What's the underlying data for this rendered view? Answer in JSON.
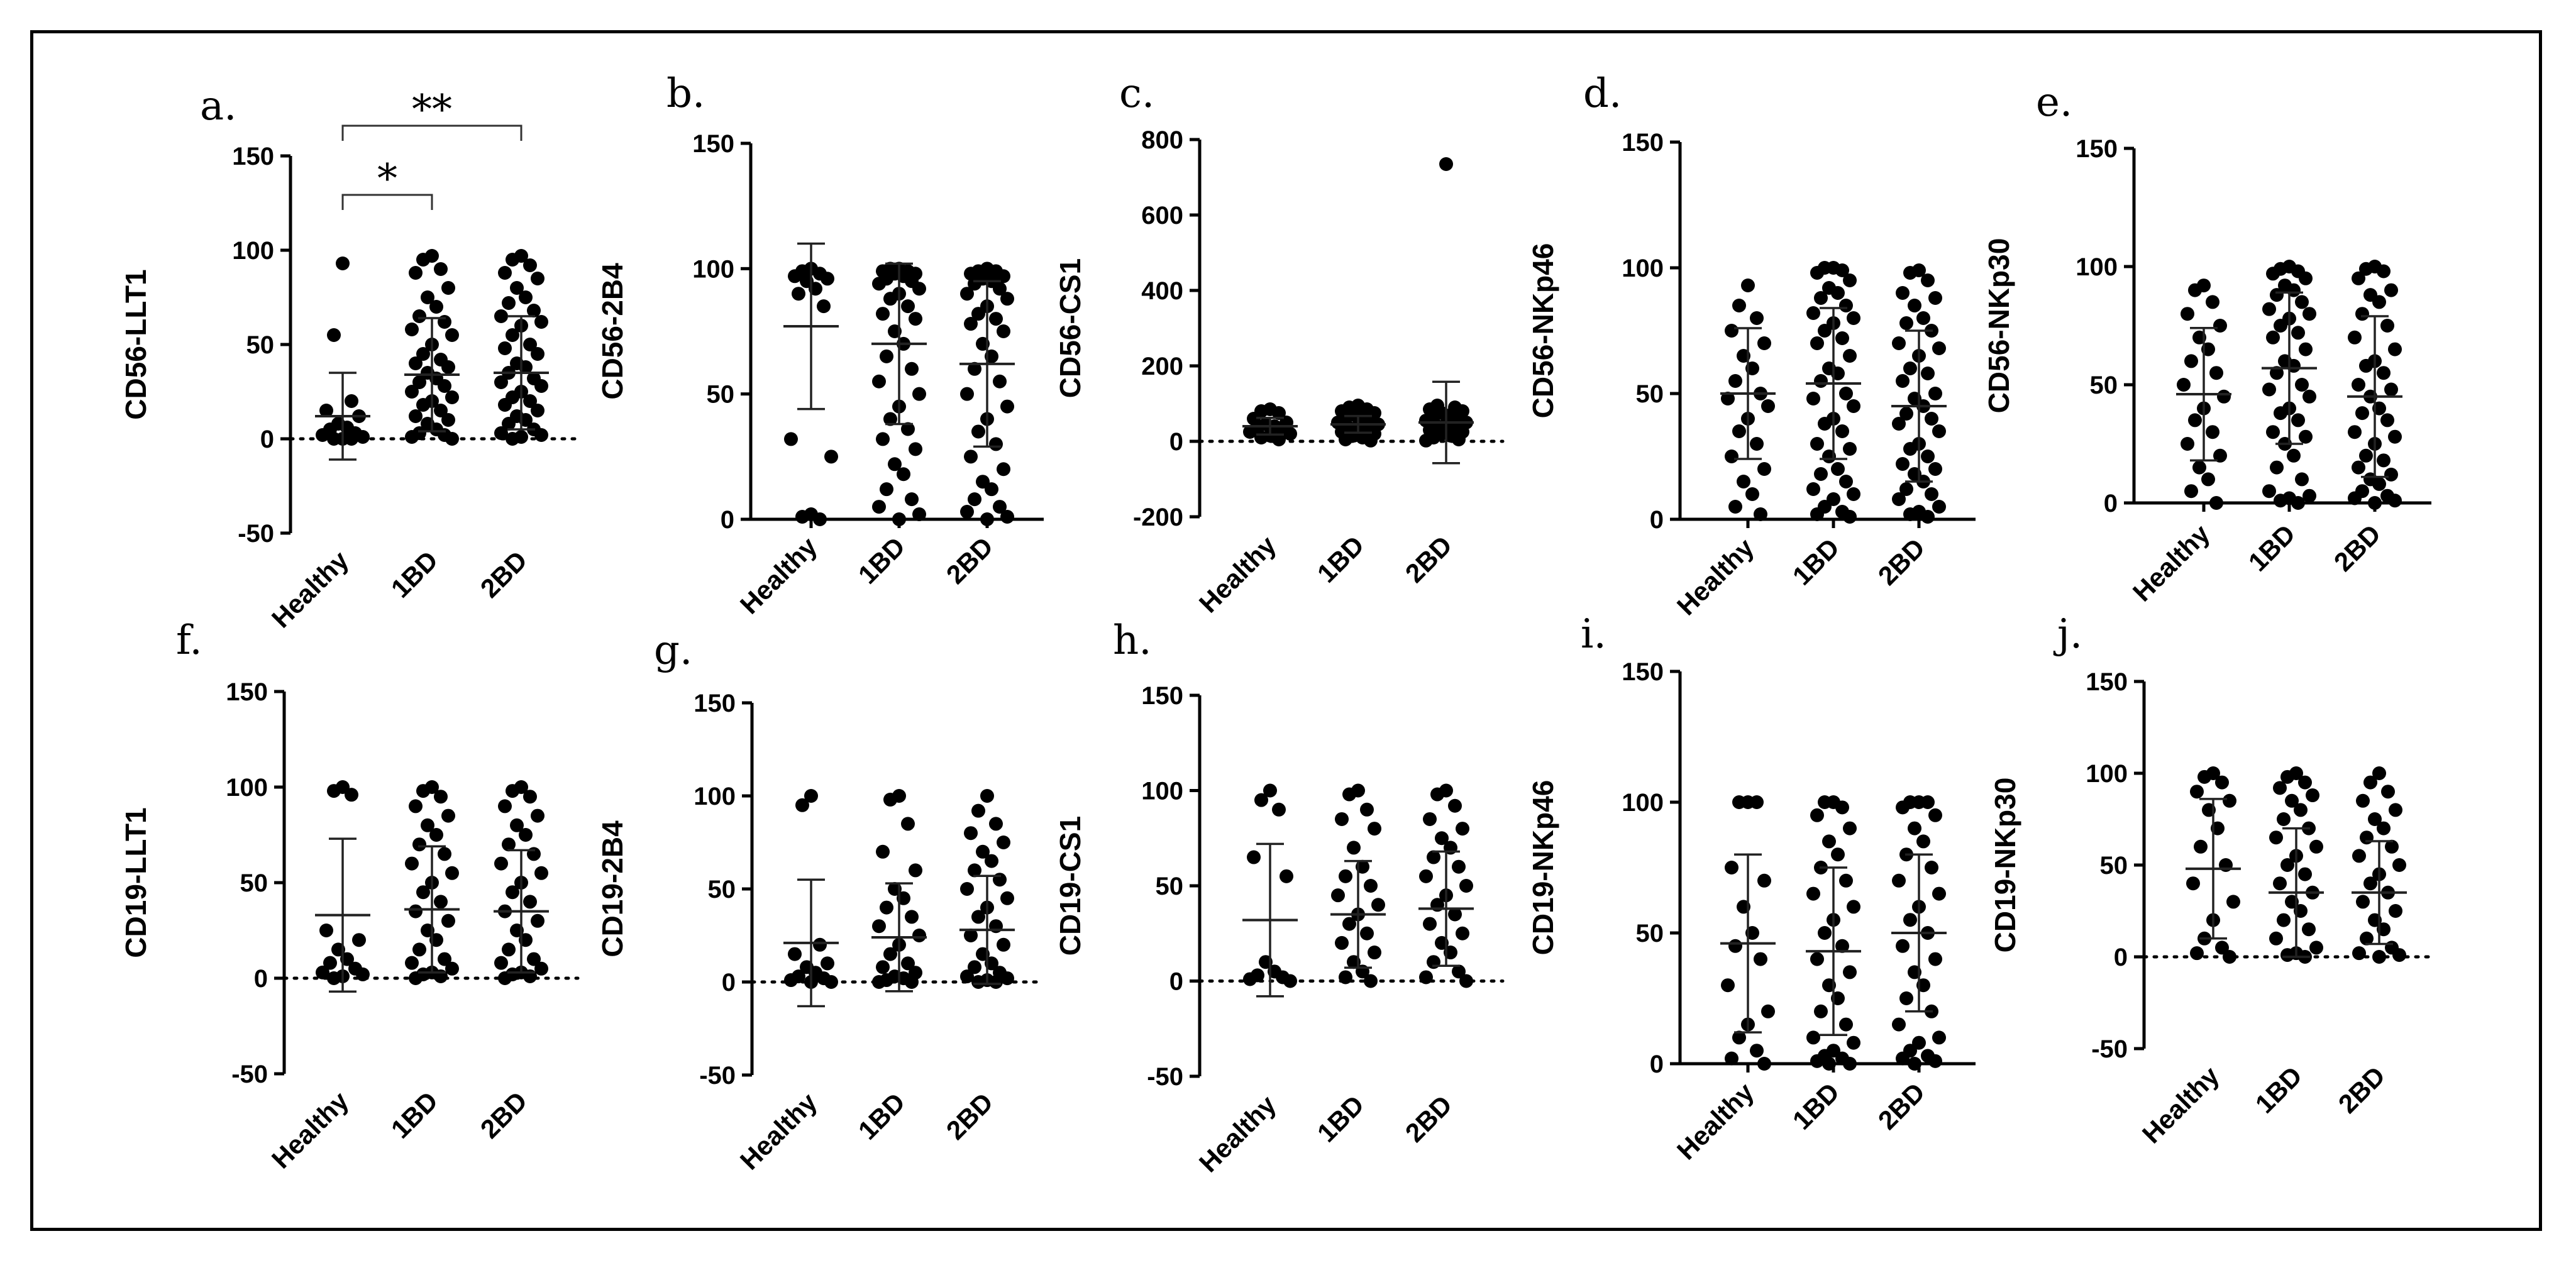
{
  "figure": {
    "colors": {
      "points": "#000000",
      "axes": "#000000",
      "error_bars": "#222222",
      "frame": "#000000"
    }
  },
  "chart_data": [
    {
      "panel": "a.",
      "type": "scatter",
      "ylabel": "CD56-LLT1",
      "categories": [
        "Healthy",
        "1BD",
        "2BD"
      ],
      "ylim": [
        -50,
        150
      ],
      "yticks": [
        "-50",
        "0",
        "50",
        "100",
        "150"
      ],
      "zero_line": true,
      "means": [
        12,
        34,
        35
      ],
      "sd": [
        23,
        30,
        30
      ],
      "series": [
        {
          "name": "Healthy",
          "values": [
            93,
            55,
            20,
            15,
            12,
            8,
            6,
            5,
            3,
            2,
            1,
            0,
            0,
            0
          ]
        },
        {
          "name": "1BD",
          "values": [
            97,
            95,
            90,
            88,
            80,
            75,
            70,
            65,
            62,
            58,
            55,
            50,
            45,
            42,
            40,
            38,
            35,
            32,
            30,
            28,
            25,
            22,
            20,
            18,
            15,
            12,
            10,
            8,
            5,
            3,
            2,
            1,
            0
          ]
        },
        {
          "name": "2BD",
          "values": [
            97,
            95,
            92,
            88,
            85,
            80,
            75,
            72,
            68,
            65,
            62,
            60,
            55,
            50,
            48,
            45,
            40,
            38,
            35,
            32,
            30,
            28,
            25,
            22,
            20,
            18,
            15,
            12,
            10,
            8,
            5,
            3,
            2,
            1,
            0
          ]
        }
      ],
      "significance": [
        {
          "from": "Healthy",
          "to": "1BD",
          "label": "*"
        },
        {
          "from": "Healthy",
          "to": "2BD",
          "label": "**"
        }
      ]
    },
    {
      "panel": "b.",
      "type": "scatter",
      "ylabel": "CD56-2B4",
      "categories": [
        "Healthy",
        "1BD",
        "2BD"
      ],
      "ylim": [
        0,
        150
      ],
      "yticks": [
        "0",
        "50",
        "100",
        "150"
      ],
      "zero_line": false,
      "means": [
        77,
        70,
        62
      ],
      "sd": [
        33,
        32,
        33
      ],
      "series": [
        {
          "name": "Healthy",
          "values": [
            100,
            99,
            98,
            97,
            96,
            95,
            92,
            90,
            85,
            32,
            25,
            2,
            1,
            0
          ]
        },
        {
          "name": "1BD",
          "values": [
            100,
            100,
            99,
            99,
            98,
            98,
            97,
            96,
            95,
            94,
            92,
            90,
            88,
            85,
            82,
            80,
            75,
            70,
            65,
            60,
            55,
            50,
            45,
            40,
            36,
            32,
            28,
            22,
            18,
            12,
            8,
            5,
            2,
            0
          ]
        },
        {
          "name": "2BD",
          "values": [
            100,
            99,
            99,
            98,
            97,
            96,
            95,
            94,
            92,
            90,
            88,
            85,
            82,
            80,
            78,
            75,
            70,
            65,
            60,
            55,
            50,
            45,
            40,
            35,
            30,
            25,
            20,
            15,
            12,
            8,
            5,
            3,
            1,
            0
          ]
        }
      ],
      "significance": []
    },
    {
      "panel": "c.",
      "type": "scatter",
      "ylabel": "CD56-CS1",
      "categories": [
        "Healthy",
        "1BD",
        "2BD"
      ],
      "ylim": [
        -200,
        800
      ],
      "yticks": [
        "-200",
        "0",
        "200",
        "400",
        "600",
        "800"
      ],
      "zero_line": true,
      "means": [
        40,
        45,
        50
      ],
      "sd": [
        22,
        22,
        108
      ],
      "series": [
        {
          "name": "Healthy",
          "values": [
            85,
            80,
            75,
            60,
            50,
            45,
            40,
            35,
            30,
            25,
            20,
            15,
            10,
            5
          ]
        },
        {
          "name": "1BD",
          "values": [
            95,
            90,
            85,
            80,
            75,
            70,
            65,
            60,
            55,
            50,
            45,
            40,
            35,
            30,
            25,
            20,
            15,
            10,
            5,
            2
          ]
        },
        {
          "name": "2BD",
          "values": [
            735,
            95,
            90,
            85,
            80,
            75,
            70,
            65,
            60,
            55,
            50,
            45,
            40,
            35,
            30,
            25,
            20,
            15,
            10,
            5,
            2
          ]
        }
      ],
      "significance": []
    },
    {
      "panel": "d.",
      "type": "scatter",
      "ylabel": "CD56-NKp46",
      "categories": [
        "Healthy",
        "1BD",
        "2BD"
      ],
      "ylim": [
        0,
        150
      ],
      "yticks": [
        "0",
        "50",
        "100",
        "150"
      ],
      "zero_line": false,
      "means": [
        50,
        54,
        45
      ],
      "sd": [
        26,
        30,
        30
      ],
      "series": [
        {
          "name": "Healthy",
          "values": [
            93,
            85,
            80,
            75,
            70,
            65,
            60,
            55,
            50,
            48,
            45,
            40,
            35,
            30,
            25,
            20,
            15,
            10,
            5,
            2
          ]
        },
        {
          "name": "1BD",
          "values": [
            100,
            100,
            99,
            98,
            95,
            92,
            90,
            88,
            85,
            82,
            80,
            78,
            75,
            72,
            70,
            65,
            60,
            58,
            55,
            50,
            48,
            45,
            40,
            38,
            35,
            30,
            28,
            25,
            20,
            18,
            15,
            12,
            10,
            8,
            5,
            3,
            2,
            1
          ]
        },
        {
          "name": "2BD",
          "values": [
            99,
            98,
            95,
            90,
            88,
            85,
            80,
            78,
            75,
            70,
            68,
            65,
            60,
            58,
            55,
            50,
            48,
            45,
            42,
            40,
            38,
            35,
            30,
            28,
            25,
            22,
            20,
            18,
            15,
            12,
            10,
            8,
            5,
            3,
            2,
            1
          ]
        }
      ],
      "significance": []
    },
    {
      "panel": "e.",
      "type": "scatter",
      "ylabel": "CD56-NKp30",
      "categories": [
        "Healthy",
        "1BD",
        "2BD"
      ],
      "ylim": [
        0,
        150
      ],
      "yticks": [
        "0",
        "50",
        "100",
        "150"
      ],
      "zero_line": false,
      "means": [
        46,
        57,
        45
      ],
      "sd": [
        28,
        32,
        34
      ],
      "series": [
        {
          "name": "Healthy",
          "values": [
            92,
            90,
            85,
            80,
            75,
            70,
            65,
            60,
            55,
            50,
            45,
            40,
            35,
            30,
            25,
            20,
            15,
            10,
            5,
            0
          ]
        },
        {
          "name": "1BD",
          "values": [
            100,
            99,
            98,
            97,
            95,
            92,
            90,
            88,
            85,
            82,
            80,
            78,
            75,
            72,
            70,
            65,
            60,
            58,
            55,
            50,
            48,
            45,
            40,
            38,
            35,
            30,
            28,
            25,
            20,
            15,
            10,
            5,
            3,
            2,
            1,
            0
          ]
        },
        {
          "name": "2BD",
          "values": [
            100,
            99,
            98,
            95,
            90,
            88,
            85,
            80,
            75,
            70,
            65,
            60,
            58,
            55,
            50,
            48,
            45,
            40,
            38,
            35,
            30,
            28,
            25,
            20,
            18,
            15,
            12,
            10,
            8,
            5,
            3,
            2,
            1,
            0
          ]
        }
      ],
      "significance": []
    },
    {
      "panel": "f.",
      "type": "scatter",
      "ylabel": "CD19-LLT1",
      "categories": [
        "Healthy",
        "1BD",
        "2BD"
      ],
      "ylim": [
        -50,
        150
      ],
      "yticks": [
        "-50",
        "0",
        "50",
        "100",
        "150"
      ],
      "zero_line": true,
      "means": [
        33,
        36,
        35
      ],
      "sd": [
        40,
        33,
        32
      ],
      "series": [
        {
          "name": "Healthy",
          "values": [
            100,
            98,
            96,
            25,
            20,
            15,
            10,
            8,
            5,
            3,
            2,
            1,
            0
          ]
        },
        {
          "name": "1BD",
          "values": [
            100,
            98,
            95,
            90,
            85,
            80,
            75,
            70,
            65,
            60,
            55,
            50,
            45,
            40,
            35,
            30,
            25,
            20,
            15,
            10,
            8,
            5,
            3,
            2,
            1,
            0
          ]
        },
        {
          "name": "2BD",
          "values": [
            100,
            98,
            95,
            90,
            85,
            80,
            75,
            70,
            65,
            60,
            55,
            50,
            45,
            40,
            35,
            30,
            25,
            20,
            15,
            10,
            8,
            5,
            3,
            2,
            1,
            0
          ]
        }
      ],
      "significance": []
    },
    {
      "panel": "g.",
      "type": "scatter",
      "ylabel": "CD19-2B4",
      "categories": [
        "Healthy",
        "1BD",
        "2BD"
      ],
      "ylim": [
        -50,
        150
      ],
      "yticks": [
        "-50",
        "0",
        "50",
        "100",
        "150"
      ],
      "zero_line": true,
      "means": [
        21,
        24,
        28
      ],
      "sd": [
        34,
        29,
        29
      ],
      "series": [
        {
          "name": "Healthy",
          "values": [
            100,
            95,
            20,
            15,
            10,
            8,
            5,
            3,
            2,
            1,
            0,
            0
          ]
        },
        {
          "name": "1BD",
          "values": [
            100,
            98,
            85,
            70,
            60,
            50,
            45,
            40,
            35,
            30,
            25,
            20,
            15,
            10,
            8,
            5,
            3,
            2,
            1,
            0,
            0
          ]
        },
        {
          "name": "2BD",
          "values": [
            100,
            92,
            85,
            80,
            75,
            70,
            65,
            60,
            55,
            50,
            45,
            40,
            35,
            30,
            25,
            20,
            15,
            10,
            8,
            5,
            3,
            2,
            1,
            0,
            0
          ]
        }
      ],
      "significance": []
    },
    {
      "panel": "h.",
      "type": "scatter",
      "ylabel": "CD19-CS1",
      "categories": [
        "Healthy",
        "1BD",
        "2BD"
      ],
      "ylim": [
        -50,
        150
      ],
      "yticks": [
        "-50",
        "0",
        "50",
        "100",
        "150"
      ],
      "zero_line": true,
      "means": [
        32,
        35,
        38
      ],
      "sd": [
        40,
        28,
        30
      ],
      "series": [
        {
          "name": "Healthy",
          "values": [
            100,
            95,
            90,
            65,
            55,
            10,
            5,
            3,
            2,
            1,
            0
          ]
        },
        {
          "name": "1BD",
          "values": [
            100,
            98,
            90,
            85,
            80,
            70,
            60,
            55,
            50,
            45,
            40,
            35,
            30,
            25,
            20,
            15,
            10,
            5,
            2,
            0
          ]
        },
        {
          "name": "2BD",
          "values": [
            100,
            98,
            92,
            85,
            80,
            75,
            70,
            65,
            60,
            55,
            50,
            45,
            40,
            35,
            30,
            25,
            20,
            15,
            10,
            5,
            2,
            0
          ]
        }
      ],
      "significance": []
    },
    {
      "panel": "i.",
      "type": "scatter",
      "ylabel": "CD19-NKp46",
      "categories": [
        "Healthy",
        "1BD",
        "2BD"
      ],
      "ylim": [
        0,
        150
      ],
      "yticks": [
        "0",
        "50",
        "100",
        "150"
      ],
      "zero_line": false,
      "means": [
        46,
        43,
        50
      ],
      "sd": [
        34,
        32,
        30
      ],
      "series": [
        {
          "name": "Healthy",
          "values": [
            100,
            100,
            100,
            75,
            70,
            60,
            50,
            45,
            40,
            30,
            20,
            15,
            10,
            5,
            2,
            0
          ]
        },
        {
          "name": "1BD",
          "values": [
            100,
            100,
            98,
            95,
            90,
            85,
            80,
            75,
            70,
            65,
            60,
            55,
            50,
            45,
            40,
            35,
            30,
            25,
            20,
            15,
            10,
            8,
            5,
            3,
            2,
            1,
            0,
            0
          ]
        },
        {
          "name": "2BD",
          "values": [
            100,
            100,
            100,
            98,
            95,
            90,
            85,
            80,
            75,
            70,
            65,
            60,
            55,
            50,
            45,
            40,
            35,
            30,
            25,
            20,
            15,
            10,
            8,
            5,
            3,
            2,
            1,
            0
          ]
        }
      ],
      "significance": []
    },
    {
      "panel": "j.",
      "type": "scatter",
      "ylabel": "CD19-NKp30",
      "categories": [
        "Healthy",
        "1BD",
        "2BD"
      ],
      "ylim": [
        -50,
        150
      ],
      "yticks": [
        "-50",
        "0",
        "50",
        "100",
        "150"
      ],
      "zero_line": true,
      "means": [
        48,
        35,
        35
      ],
      "sd": [
        38,
        35,
        28
      ],
      "series": [
        {
          "name": "Healthy",
          "values": [
            100,
            98,
            95,
            90,
            85,
            80,
            70,
            60,
            50,
            40,
            30,
            20,
            10,
            5,
            2,
            0
          ]
        },
        {
          "name": "1BD",
          "values": [
            100,
            98,
            95,
            92,
            88,
            85,
            80,
            75,
            70,
            65,
            60,
            55,
            50,
            45,
            40,
            35,
            30,
            25,
            20,
            15,
            10,
            5,
            2,
            1,
            0
          ]
        },
        {
          "name": "2BD",
          "values": [
            100,
            95,
            90,
            85,
            80,
            75,
            70,
            65,
            60,
            55,
            50,
            45,
            40,
            35,
            30,
            25,
            20,
            15,
            10,
            5,
            2,
            1,
            0
          ]
        }
      ],
      "significance": []
    }
  ]
}
